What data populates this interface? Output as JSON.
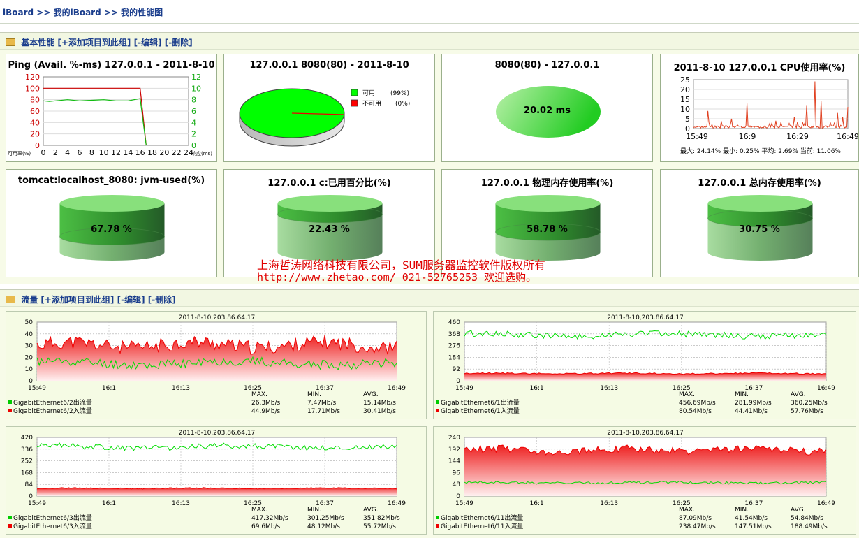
{
  "breadcrumb": {
    "a": "iBoard",
    "sep1": " >> ",
    "b": "我的iBoard",
    "sep2": " >> ",
    "c": "我的性能图"
  },
  "sections": {
    "basic": {
      "title": "基本性能",
      "add": "[+添加项目到此组]",
      "edit": "[-编辑]",
      "del": "[-删除]"
    },
    "traffic": {
      "title": "流量",
      "add": "[+添加项目到此组]",
      "edit": "[-编辑]",
      "del": "[-删除]"
    }
  },
  "ping": {
    "title": "Ping (Avail. %-ms) 127.0.0.1 - 2011-8-10",
    "left_ticks": [
      "120",
      "100",
      "80",
      "60",
      "40",
      "20",
      "0"
    ],
    "right_ticks": [
      "12",
      "10",
      "8",
      "6",
      "4",
      "2",
      "0"
    ],
    "x_ticks": [
      "0",
      "2",
      "4",
      "6",
      "8",
      "10",
      "12",
      "14",
      "16",
      "18",
      "20",
      "22",
      "24"
    ],
    "left_label": "可用率(%)",
    "right_label": "响应(ms)",
    "avail_line": [
      [
        0,
        100
      ],
      [
        16,
        100
      ],
      [
        17,
        0
      ]
    ],
    "resp_line": [
      [
        0,
        7.8
      ],
      [
        1,
        7.7
      ],
      [
        2,
        7.8
      ],
      [
        4,
        8
      ],
      [
        6,
        7.8
      ],
      [
        8,
        7.9
      ],
      [
        10,
        8
      ],
      [
        12,
        7.8
      ],
      [
        14,
        7.8
      ],
      [
        16,
        8.2
      ],
      [
        17,
        0
      ]
    ]
  },
  "pie": {
    "title": "127.0.0.1 8080(80) - 2011-8-10",
    "legend": [
      {
        "label": "可用",
        "pct": "(99%)",
        "color": "#00ff00"
      },
      {
        "label": "不可用",
        "pct": "(0%)",
        "color": "#ff0000"
      }
    ]
  },
  "resp": {
    "title": "8080(80) - 127.0.0.1",
    "value": "20.02 ms"
  },
  "cpu": {
    "title": "2011-8-10 127.0.0.1 CPU使用率(%)",
    "y_ticks": [
      "25",
      "20",
      "15",
      "10",
      "5",
      "0"
    ],
    "x_ticks": [
      "15:49",
      "16:9",
      "16:29",
      "16:49"
    ],
    "stats": "最大: 24.14% 最小: 0.25% 平均: 2.69% 当前: 11.06%"
  },
  "gauges": [
    {
      "title": "tomcat:localhost_8080: jvm-used(%)",
      "value": "67.78 %",
      "fill": 0.6778
    },
    {
      "title": "127.0.0.1 c:已用百分比(%)",
      "value": "22.43 %",
      "fill": 0.2243
    },
    {
      "title": "127.0.0.1 物理内存使用率(%)",
      "value": "58.78 %",
      "fill": 0.5878
    },
    {
      "title": "127.0.0.1 总内存使用率(%)",
      "value": "30.75 %",
      "fill": 0.3075
    }
  ],
  "watermark": {
    "line1": "上海哲涛网络科技有限公司，SUM服务器监控软件版权所有",
    "line2": "http://www.zhetao.com/ 021-52765253 欢迎选购。"
  },
  "traffic_charts": [
    {
      "title": "2011-8-10,203.86.64.17",
      "y_ticks": [
        "50",
        "40",
        "30",
        "20",
        "10",
        "0"
      ],
      "ymax": 50,
      "x_ticks": [
        "15:49",
        "16:1",
        "16:13",
        "16:25",
        "16:37",
        "16:49"
      ],
      "hdr": [
        "MAX.",
        "MIN.",
        "AVG."
      ],
      "rows": [
        {
          "name": "GigabitEthernet6/2出流量",
          "color": "#00cc00",
          "max": "26.3Mb/s",
          "min": "7.47Mb/s",
          "avg": "15.14Mb/s"
        },
        {
          "name": "GigabitEthernet6/2入流量",
          "color": "#ee0000",
          "max": "44.9Mb/s",
          "min": "17.71Mb/s",
          "avg": "30.41Mb/s"
        }
      ],
      "out_mean": 15.1,
      "out_amp": 4,
      "in_mean": 30.4,
      "in_amp": 6
    },
    {
      "title": "2011-8-10,203.86.64.17",
      "y_ticks": [
        "460",
        "368",
        "276",
        "184",
        "92",
        "0"
      ],
      "ymax": 460,
      "x_ticks": [
        "15:49",
        "16:1",
        "16:13",
        "16:25",
        "16:37",
        "16:49"
      ],
      "hdr": [
        "MAX.",
        "MIN.",
        "AVG."
      ],
      "rows": [
        {
          "name": "GigabitEthernet6/1出流量",
          "color": "#00cc00",
          "max": "456.69Mb/s",
          "min": "281.99Mb/s",
          "avg": "360.25Mb/s"
        },
        {
          "name": "GigabitEthernet6/1入流量",
          "color": "#ee0000",
          "max": "80.54Mb/s",
          "min": "44.41Mb/s",
          "avg": "57.76Mb/s"
        }
      ],
      "out_mean": 360,
      "out_amp": 25,
      "in_mean": 57.8,
      "in_amp": 5
    },
    {
      "title": "2011-8-10,203.86.64.17",
      "y_ticks": [
        "420",
        "336",
        "252",
        "168",
        "84",
        "0"
      ],
      "ymax": 420,
      "x_ticks": [
        "15:49",
        "16:1",
        "16:13",
        "16:25",
        "16:37",
        "16:49"
      ],
      "hdr": [
        "MAX.",
        "MIN.",
        "AVG."
      ],
      "rows": [
        {
          "name": "GigabitEthernet6/3出流量",
          "color": "#00cc00",
          "max": "417.32Mb/s",
          "min": "301.25Mb/s",
          "avg": "351.82Mb/s"
        },
        {
          "name": "GigabitEthernet6/3入流量",
          "color": "#ee0000",
          "max": "69.6Mb/s",
          "min": "48.12Mb/s",
          "avg": "55.72Mb/s"
        }
      ],
      "out_mean": 352,
      "out_amp": 20,
      "in_mean": 55.7,
      "in_amp": 4
    },
    {
      "title": "2011-8-10,203.86.64.17",
      "y_ticks": [
        "240",
        "192",
        "144",
        "96",
        "48",
        "0"
      ],
      "ymax": 240,
      "x_ticks": [
        "15:49",
        "16:1",
        "16:13",
        "16:25",
        "16:37",
        "16:49"
      ],
      "hdr": [
        "MAX.",
        "MIN.",
        "AVG."
      ],
      "rows": [
        {
          "name": "GigabitEthernet6/11出流量",
          "color": "#00cc00",
          "max": "87.09Mb/s",
          "min": "41.54Mb/s",
          "avg": "54.84Mb/s"
        },
        {
          "name": "GigabitEthernet6/11入流量",
          "color": "#ee0000",
          "max": "238.47Mb/s",
          "min": "147.51Mb/s",
          "avg": "188.49Mb/s"
        }
      ],
      "out_mean": 54.8,
      "out_amp": 5,
      "in_mean": 188,
      "in_amp": 15
    }
  ]
}
